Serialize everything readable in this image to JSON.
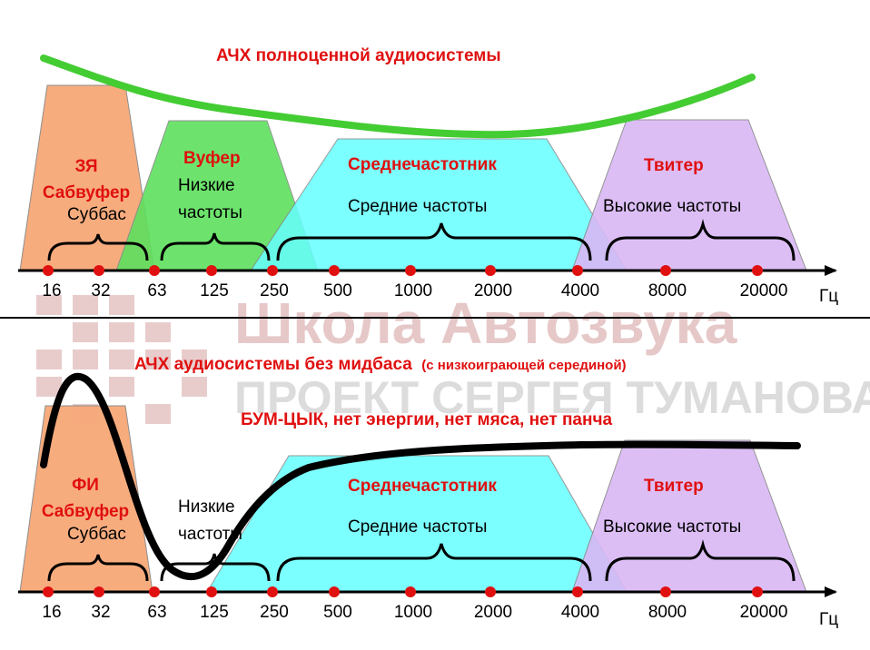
{
  "watermark": {
    "line1": "Школа Автозвука",
    "line2": "ПРОЕКТ СЕРГЕЯ ТУМАНОВА"
  },
  "top": {
    "title": "АЧХ полноценной аудиосистемы",
    "bands": {
      "sub_title": "ЗЯ",
      "sub_title2": "Сабвуфер",
      "sub_desc": "Суббас",
      "woofer_title": "Вуфер",
      "woofer_desc1": "Низкие",
      "woofer_desc2": "частоты",
      "mid_title": "Среднечастотник",
      "mid_desc": "Средние частоты",
      "tweeter_title": "Твитер",
      "tweeter_desc": "Высокие частоты"
    },
    "ticks": [
      "16",
      "32",
      "63",
      "125",
      "250",
      "500",
      "1000",
      "2000",
      "4000",
      "8000",
      "20000"
    ],
    "unit": "Гц"
  },
  "bottom": {
    "title": "АЧХ аудиосистемы без мидбаса",
    "title_note": "(с низкоиграющей серединой)",
    "subtitle": "БУМ-ЦЫК, нет энергии, нет мяса, нет панча",
    "bands": {
      "sub_title": "ФИ",
      "sub_title2": "Сабвуфер",
      "sub_desc": "Суббас",
      "low_desc1": "Низкие",
      "low_desc2": "частоты",
      "mid_title": "Среднечастотник",
      "mid_desc": "Средние частоты",
      "tweeter_title": "Твитер",
      "tweeter_desc": "Высокие частоты"
    },
    "ticks": [
      "16",
      "32",
      "63",
      "125",
      "250",
      "500",
      "1000",
      "2000",
      "4000",
      "8000",
      "20000"
    ],
    "unit": "Гц"
  },
  "colors": {
    "sub": "#f7a878",
    "woofer": "#5ee05e",
    "mid": "#66ffff",
    "tweeter": "#d9b8f5",
    "curve_top": "#44cc33",
    "curve_bottom": "#000000",
    "accent": "#e01010"
  }
}
